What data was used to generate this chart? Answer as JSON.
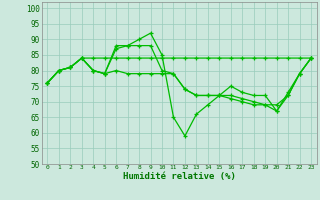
{
  "xlabel": "Humidité relative (%)",
  "background_color": "#cce8dd",
  "grid_color": "#99ccbb",
  "line_color": "#00bb00",
  "xlim": [
    -0.5,
    23.5
  ],
  "ylim": [
    50,
    102
  ],
  "yticks": [
    50,
    55,
    60,
    65,
    70,
    75,
    80,
    85,
    90,
    95,
    100
  ],
  "xticks": [
    0,
    1,
    2,
    3,
    4,
    5,
    6,
    7,
    8,
    9,
    10,
    11,
    12,
    13,
    14,
    15,
    16,
    17,
    18,
    19,
    20,
    21,
    22,
    23
  ],
  "series": [
    [
      76,
      80,
      81,
      84,
      80,
      79,
      88,
      88,
      90,
      92,
      85,
      65,
      59,
      66,
      69,
      72,
      75,
      73,
      72,
      72,
      67,
      73,
      79,
      84
    ],
    [
      76,
      80,
      81,
      84,
      80,
      79,
      87,
      88,
      88,
      88,
      80,
      79,
      74,
      72,
      72,
      72,
      72,
      71,
      70,
      69,
      69,
      72,
      79,
      84
    ],
    [
      76,
      80,
      81,
      84,
      84,
      84,
      84,
      84,
      84,
      84,
      84,
      84,
      84,
      84,
      84,
      84,
      84,
      84,
      84,
      84,
      84,
      84,
      84,
      84
    ],
    [
      76,
      80,
      81,
      84,
      80,
      79,
      80,
      79,
      79,
      79,
      79,
      79,
      74,
      72,
      72,
      72,
      71,
      70,
      69,
      69,
      67,
      72,
      79,
      84
    ]
  ]
}
